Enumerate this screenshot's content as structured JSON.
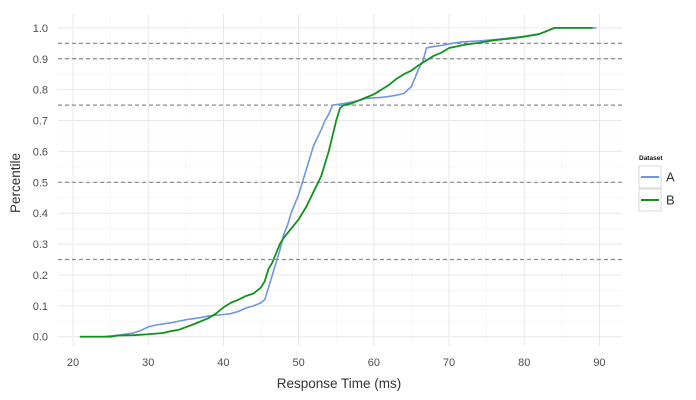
{
  "chart_data": {
    "type": "line",
    "title": "",
    "xlabel": "Response Time (ms)",
    "ylabel": "Percentile",
    "xlim": [
      18,
      93
    ],
    "ylim": [
      -0.03,
      1.045
    ],
    "x_ticks": [
      20,
      30,
      40,
      50,
      60,
      70,
      80,
      90
    ],
    "y_ticks": [
      0.0,
      0.1,
      0.2,
      0.3,
      0.4,
      0.5,
      0.6,
      0.7,
      0.8,
      0.9,
      1.0
    ],
    "y_tick_labels": [
      "0.0",
      "0.1",
      "0.2",
      "0.3",
      "0.4",
      "0.5",
      "0.6",
      "0.7",
      "0.8",
      "0.9",
      "1.0"
    ],
    "grid": true,
    "reference_lines": [
      0.25,
      0.5,
      0.75,
      0.9,
      0.95
    ],
    "legend": {
      "title": "Dataset",
      "position": "right"
    },
    "series": [
      {
        "name": "A",
        "color": "#6f96e0",
        "points": [
          [
            21,
            0.0
          ],
          [
            24,
            0.0
          ],
          [
            26,
            0.005
          ],
          [
            28,
            0.012
          ],
          [
            29,
            0.02
          ],
          [
            30,
            0.032
          ],
          [
            31,
            0.038
          ],
          [
            33,
            0.045
          ],
          [
            35,
            0.055
          ],
          [
            37,
            0.062
          ],
          [
            38,
            0.067
          ],
          [
            40,
            0.072
          ],
          [
            41,
            0.075
          ],
          [
            42,
            0.082
          ],
          [
            43,
            0.093
          ],
          [
            44,
            0.1
          ],
          [
            45,
            0.11
          ],
          [
            45.5,
            0.12
          ],
          [
            46,
            0.16
          ],
          [
            46.5,
            0.2
          ],
          [
            47,
            0.24
          ],
          [
            47.5,
            0.28
          ],
          [
            48,
            0.33
          ],
          [
            48.5,
            0.36
          ],
          [
            49,
            0.4
          ],
          [
            49.5,
            0.43
          ],
          [
            50,
            0.46
          ],
          [
            50.5,
            0.5
          ],
          [
            51,
            0.54
          ],
          [
            51.5,
            0.58
          ],
          [
            52,
            0.62
          ],
          [
            53,
            0.67
          ],
          [
            53.5,
            0.7
          ],
          [
            54,
            0.72
          ],
          [
            54.5,
            0.75
          ],
          [
            56,
            0.755
          ],
          [
            57,
            0.76
          ],
          [
            58,
            0.765
          ],
          [
            59,
            0.772
          ],
          [
            61,
            0.775
          ],
          [
            62,
            0.778
          ],
          [
            63,
            0.782
          ],
          [
            64,
            0.788
          ],
          [
            65,
            0.81
          ],
          [
            66,
            0.87
          ],
          [
            66.5,
            0.89
          ],
          [
            67,
            0.935
          ],
          [
            68,
            0.94
          ],
          [
            69,
            0.943
          ],
          [
            70,
            0.948
          ],
          [
            71,
            0.952
          ],
          [
            72,
            0.955
          ],
          [
            74,
            0.958
          ],
          [
            76,
            0.962
          ],
          [
            78,
            0.967
          ],
          [
            80,
            0.972
          ],
          [
            82,
            0.98
          ],
          [
            84,
            1.0
          ],
          [
            89.5,
            1.0
          ]
        ]
      },
      {
        "name": "B",
        "color": "#14901e",
        "points": [
          [
            21,
            0.0
          ],
          [
            25,
            0.0
          ],
          [
            26,
            0.004
          ],
          [
            28,
            0.005
          ],
          [
            30,
            0.008
          ],
          [
            32,
            0.012
          ],
          [
            33,
            0.018
          ],
          [
            34,
            0.022
          ],
          [
            36,
            0.04
          ],
          [
            38,
            0.06
          ],
          [
            39,
            0.075
          ],
          [
            40,
            0.095
          ],
          [
            41,
            0.11
          ],
          [
            42,
            0.12
          ],
          [
            43,
            0.132
          ],
          [
            44,
            0.14
          ],
          [
            45,
            0.16
          ],
          [
            45.5,
            0.18
          ],
          [
            46,
            0.22
          ],
          [
            46.5,
            0.24
          ],
          [
            47,
            0.27
          ],
          [
            47.5,
            0.3
          ],
          [
            48,
            0.32
          ],
          [
            49,
            0.35
          ],
          [
            50,
            0.38
          ],
          [
            51,
            0.42
          ],
          [
            52,
            0.47
          ],
          [
            53,
            0.52
          ],
          [
            53.5,
            0.56
          ],
          [
            54,
            0.6
          ],
          [
            54.5,
            0.65
          ],
          [
            55,
            0.7
          ],
          [
            55.5,
            0.74
          ],
          [
            56,
            0.75
          ],
          [
            57,
            0.755
          ],
          [
            58,
            0.765
          ],
          [
            59,
            0.775
          ],
          [
            60,
            0.785
          ],
          [
            61,
            0.8
          ],
          [
            62,
            0.815
          ],
          [
            63,
            0.835
          ],
          [
            64,
            0.85
          ],
          [
            65,
            0.862
          ],
          [
            66,
            0.88
          ],
          [
            67,
            0.895
          ],
          [
            68,
            0.91
          ],
          [
            69,
            0.92
          ],
          [
            70,
            0.935
          ],
          [
            72,
            0.945
          ],
          [
            74,
            0.952
          ],
          [
            76,
            0.96
          ],
          [
            78,
            0.965
          ],
          [
            80,
            0.972
          ],
          [
            82,
            0.98
          ],
          [
            83,
            0.99
          ],
          [
            84,
            1.0
          ],
          [
            89,
            1.0
          ]
        ]
      }
    ]
  }
}
